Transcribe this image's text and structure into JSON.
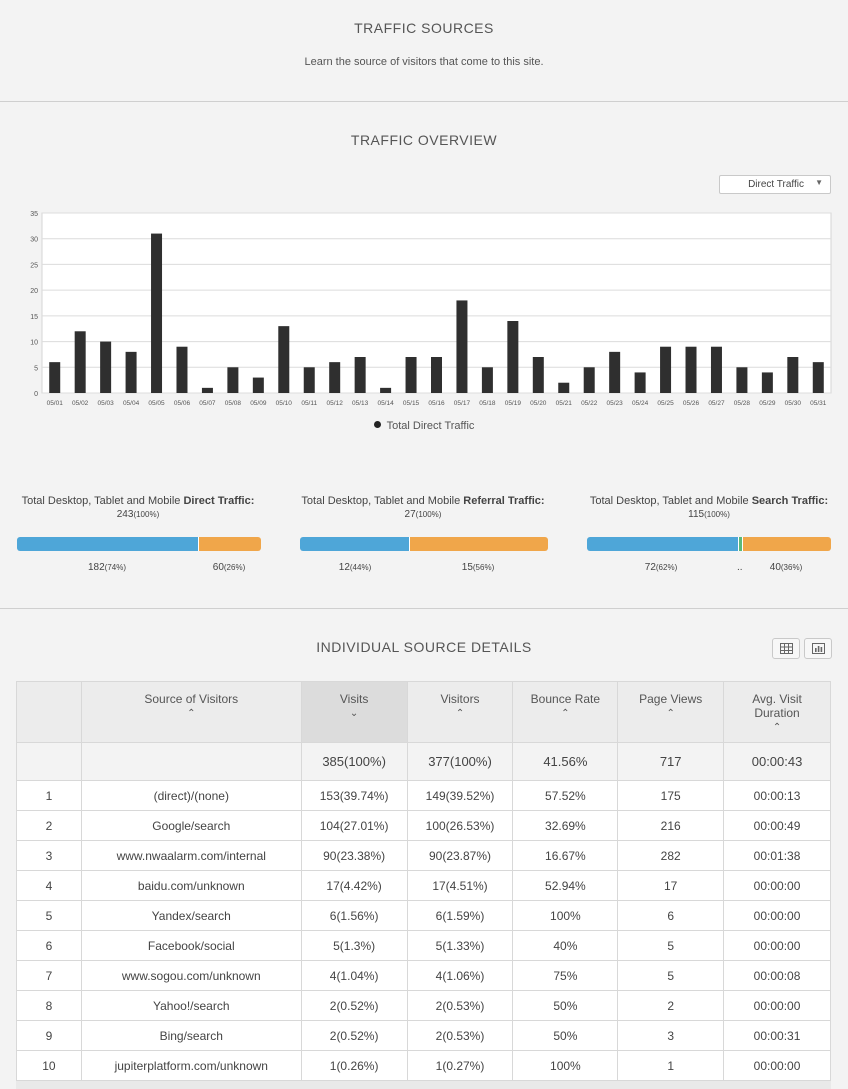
{
  "header": {
    "title": "TRAFFIC  SOURCES",
    "subtitle": "Learn the source of visitors that come to this site."
  },
  "overview": {
    "title": "TRAFFIC  OVERVIEW",
    "select_value": "Direct Traffic",
    "legend": "Total Direct Traffic"
  },
  "chart_data": {
    "type": "bar",
    "categories": [
      "05/01",
      "05/02",
      "05/03",
      "05/04",
      "05/05",
      "05/06",
      "05/07",
      "05/08",
      "05/09",
      "05/10",
      "05/11",
      "05/12",
      "05/13",
      "05/14",
      "05/15",
      "05/16",
      "05/17",
      "05/18",
      "05/19",
      "05/20",
      "05/21",
      "05/22",
      "05/23",
      "05/24",
      "05/25",
      "05/26",
      "05/27",
      "05/28",
      "05/29",
      "05/30",
      "05/31"
    ],
    "values": [
      6,
      12,
      10,
      8,
      31,
      9,
      1,
      5,
      3,
      13,
      5,
      6,
      7,
      1,
      7,
      7,
      18,
      5,
      14,
      7,
      2,
      5,
      8,
      4,
      9,
      9,
      9,
      5,
      4,
      7,
      6
    ],
    "yticks": [
      0,
      5,
      10,
      15,
      20,
      25,
      30,
      35
    ],
    "ylim": [
      0,
      35
    ],
    "grid": true,
    "legend": "bottom-center",
    "color": "#2f2f2f"
  },
  "totals": [
    {
      "prefix": "Total Desktop, Tablet and Mobile ",
      "bold": "Direct Traffic:",
      "total": "243",
      "total_pct": "(100%)",
      "left_val": "182",
      "left_pct": "(74%)",
      "mid": "",
      "right_val": "60",
      "right_pct": "(26%)",
      "fractions": [
        0.74,
        0,
        0.26
      ]
    },
    {
      "prefix": "Total Desktop, Tablet and Mobile ",
      "bold": "Referral Traffic:",
      "total": "27",
      "total_pct": "(100%)",
      "left_val": "12",
      "left_pct": "(44%)",
      "mid": "",
      "right_val": "15",
      "right_pct": "(56%)",
      "fractions": [
        0.44,
        0,
        0.56
      ]
    },
    {
      "prefix": "Total Desktop, Tablet and Mobile ",
      "bold": "Search Traffic:",
      "total": "115",
      "total_pct": "(100%)",
      "left_val": "72",
      "left_pct": "(62%)",
      "mid": "..",
      "right_val": "40",
      "right_pct": "(36%)",
      "fractions": [
        0.62,
        0.02,
        0.36
      ]
    }
  ],
  "colors": {
    "desktop": "#4ea6d8",
    "mobile": "#f0a64a",
    "tablet": "#5bb97a"
  },
  "details": {
    "title": "INDIVIDUAL  SOURCE  DETAILS",
    "columns": [
      "Source of Visitors",
      "Visits",
      "Visitors",
      "Bounce Rate",
      "Page Views",
      "Avg. Visit Duration"
    ],
    "summary": [
      "385(100%)",
      "377(100%)",
      "41.56%",
      "717",
      "00:00:43"
    ],
    "rows": [
      [
        "1",
        "(direct)/(none)",
        "153(39.74%)",
        "149(39.52%)",
        "57.52%",
        "175",
        "00:00:13"
      ],
      [
        "2",
        "Google/search",
        "104(27.01%)",
        "100(26.53%)",
        "32.69%",
        "216",
        "00:00:49"
      ],
      [
        "3",
        "www.nwaalarm.com/internal",
        "90(23.38%)",
        "90(23.87%)",
        "16.67%",
        "282",
        "00:01:38"
      ],
      [
        "4",
        "baidu.com/unknown",
        "17(4.42%)",
        "17(4.51%)",
        "52.94%",
        "17",
        "00:00:00"
      ],
      [
        "5",
        "Yandex/search",
        "6(1.56%)",
        "6(1.59%)",
        "100%",
        "6",
        "00:00:00"
      ],
      [
        "6",
        "Facebook/social",
        "5(1.3%)",
        "5(1.33%)",
        "40%",
        "5",
        "00:00:00"
      ],
      [
        "7",
        "www.sogou.com/unknown",
        "4(1.04%)",
        "4(1.06%)",
        "75%",
        "5",
        "00:00:08"
      ],
      [
        "8",
        "Yahoo!/search",
        "2(0.52%)",
        "2(0.53%)",
        "50%",
        "2",
        "00:00:00"
      ],
      [
        "9",
        "Bing/search",
        "2(0.52%)",
        "2(0.53%)",
        "50%",
        "3",
        "00:00:31"
      ],
      [
        "10",
        "jupiterplatform.com/unknown",
        "1(0.26%)",
        "1(0.27%)",
        "100%",
        "1",
        "00:00:00"
      ]
    ]
  }
}
